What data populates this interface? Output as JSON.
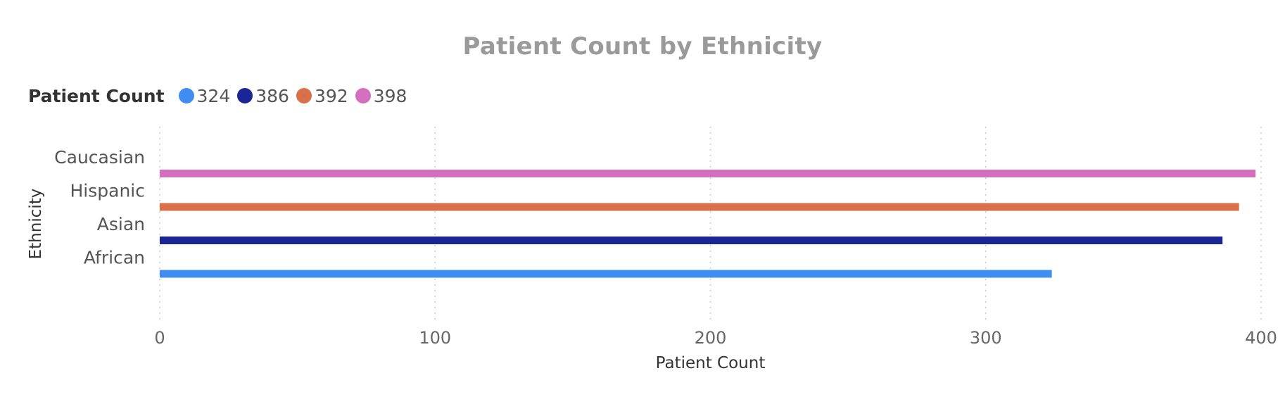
{
  "chart_data": {
    "type": "bar",
    "orientation": "horizontal",
    "title": "Patient Count by Ethnicity",
    "xlabel": "Patient Count",
    "ylabel": "Ethnicity",
    "categories": [
      "Caucasian",
      "Hispanic",
      "Asian",
      "African"
    ],
    "values": [
      398,
      392,
      386,
      324
    ],
    "colors": [
      "#d36fbd",
      "#d9704a",
      "#1a2696",
      "#3f8df0"
    ],
    "xlim": [
      0,
      400
    ],
    "xticks": [
      0,
      100,
      200,
      300,
      400
    ],
    "grid": "vertical-dotted",
    "legend_position": "top-left",
    "legend": {
      "title": "Patient Count",
      "entries": [
        {
          "label": "324",
          "color": "#3f8df0"
        },
        {
          "label": "386",
          "color": "#1a2696"
        },
        {
          "label": "392",
          "color": "#d9704a"
        },
        {
          "label": "398",
          "color": "#d36fbd"
        }
      ]
    }
  }
}
